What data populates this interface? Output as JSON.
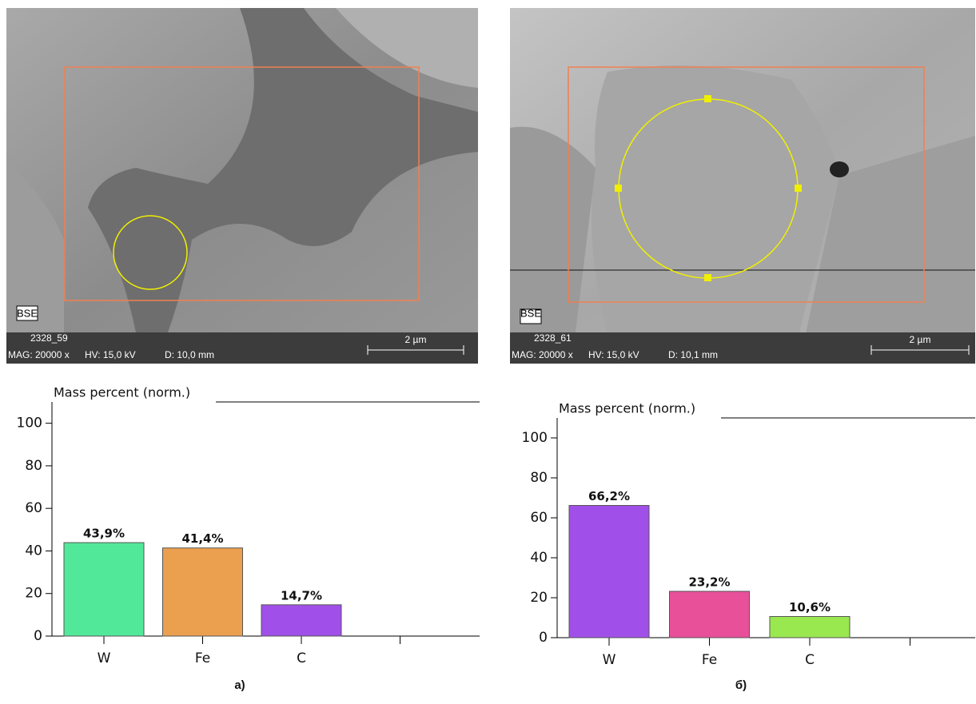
{
  "chart_data": [
    {
      "type": "bar",
      "title": "Mass percent (norm.)",
      "categories": [
        "W",
        "Fe",
        "C",
        null
      ],
      "values": [
        43.9,
        41.4,
        14.7,
        null
      ],
      "value_labels": [
        "43,9%",
        "41,4%",
        "14,7%",
        null
      ],
      "colors": [
        "#52e89a",
        "#eba050",
        "#a050e8"
      ],
      "ylim": [
        0,
        110
      ],
      "yticks": [
        0,
        20,
        40,
        60,
        80,
        100
      ],
      "caption": "а)"
    },
    {
      "type": "bar",
      "title": "Mass percent (norm.)",
      "categories": [
        "W",
        "Fe",
        "C",
        null
      ],
      "values": [
        66.2,
        23.2,
        10.6,
        null
      ],
      "value_labels": [
        "66,2%",
        "23,2%",
        "10,6%",
        null
      ],
      "colors": [
        "#a050e8",
        "#e8509a",
        "#9ae850"
      ],
      "ylim": [
        0,
        110
      ],
      "yticks": [
        0,
        20,
        40,
        60,
        80,
        100
      ],
      "caption": "б)"
    }
  ],
  "images": [
    {
      "detector": "BSE",
      "id": "2328_59",
      "mag": "MAG: 20000 x",
      "hv": "HV: 15,0 kV",
      "d": "D: 10,0 mm",
      "scale": "2 µm"
    },
    {
      "detector": "BSE",
      "id": "2328_61",
      "mag": "MAG: 20000 x",
      "hv": "HV: 15,0 kV",
      "d": "D: 10,1 mm",
      "scale": "2 µm"
    }
  ]
}
